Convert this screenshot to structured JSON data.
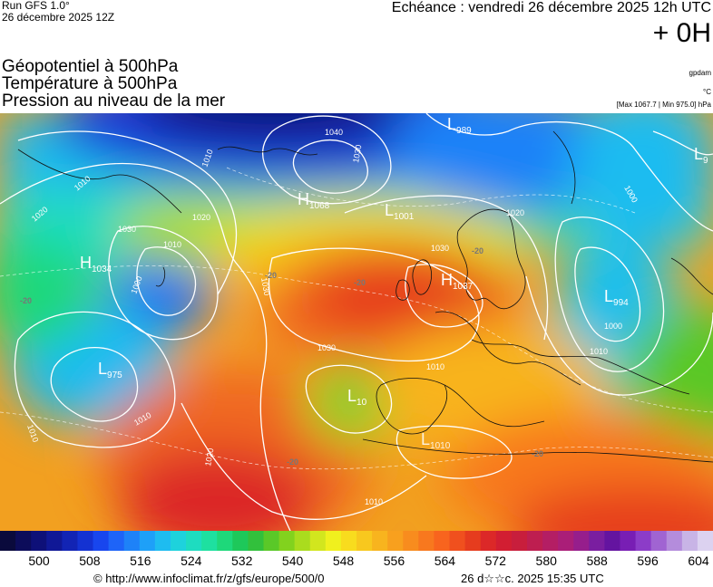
{
  "header": {
    "run": "Run GFS 1.0°",
    "run_date": "26 décembre 2025 12Z",
    "valid": "Echéance : vendredi 26 décembre 2025 12h UTC",
    "lead": "+ 0H",
    "field1": "Géopotentiel à 500hPa",
    "field2": "Température à 500hPa",
    "field3": "Pression au niveau de la mer",
    "unit_gp": "gpdam",
    "unit_temp": "°C",
    "pressure_range": "[Max 1067.7 | Min 975.0] hPa"
  },
  "pressure_centers": [
    {
      "type": "H",
      "value": "1034"
    },
    {
      "type": "H",
      "value": "1068"
    },
    {
      "type": "H",
      "value": "1037"
    },
    {
      "type": "L",
      "value": "989"
    },
    {
      "type": "L",
      "value": "1001"
    },
    {
      "type": "L",
      "value": "9"
    },
    {
      "type": "L",
      "value": "994"
    },
    {
      "type": "L",
      "value": "975"
    },
    {
      "type": "L",
      "value": "10"
    },
    {
      "type": "L",
      "value": "1010"
    }
  ],
  "isobar_labels": [
    "1040",
    "1030",
    "1020",
    "1010",
    "1000",
    "1030",
    "1020",
    "1010",
    "1030",
    "1020",
    "1010",
    "1000",
    "1010",
    "1030",
    "1010",
    "1000",
    "1010",
    "1020",
    "1010",
    "1030",
    "1010"
  ],
  "temp_labels": [
    "-20",
    "-20",
    "-20",
    "-20",
    "-20",
    "-20"
  ],
  "scale": {
    "colors": [
      "#0a0a3c",
      "#0c0c5a",
      "#0e1078",
      "#101896",
      "#1224b4",
      "#1432d2",
      "#1846ee",
      "#1e64f8",
      "#1e82f8",
      "#1ea0f8",
      "#1ebcf0",
      "#1ed2dc",
      "#1edcc0",
      "#1ee0a0",
      "#1ed87a",
      "#1ec85a",
      "#32c03c",
      "#5ac828",
      "#82d21e",
      "#aadc1e",
      "#d2e61e",
      "#f0f01e",
      "#f8dc1e",
      "#f8c81e",
      "#f8b41e",
      "#f8a01e",
      "#f88c1e",
      "#f8781e",
      "#f8641e",
      "#f0501e",
      "#e63c1e",
      "#dc2828",
      "#d21e32",
      "#c81e3c",
      "#be1e50",
      "#b41e64",
      "#aa1e78",
      "#961e8c",
      "#7a1ea0",
      "#6414a0",
      "#781eb4",
      "#8c3cc8",
      "#a064d2",
      "#b48cdc",
      "#c8b4e6",
      "#dcd2f0"
    ],
    "labels": [
      "500",
      "508",
      "516",
      "524",
      "532",
      "540",
      "548",
      "556",
      "564",
      "572",
      "580",
      "588",
      "596",
      "604"
    ]
  },
  "footer": {
    "credit": "© http://www.infoclimat.fr/z/gfs/europe/500/0",
    "generated": "26 d☆☆c. 2025 15:35 UTC"
  }
}
